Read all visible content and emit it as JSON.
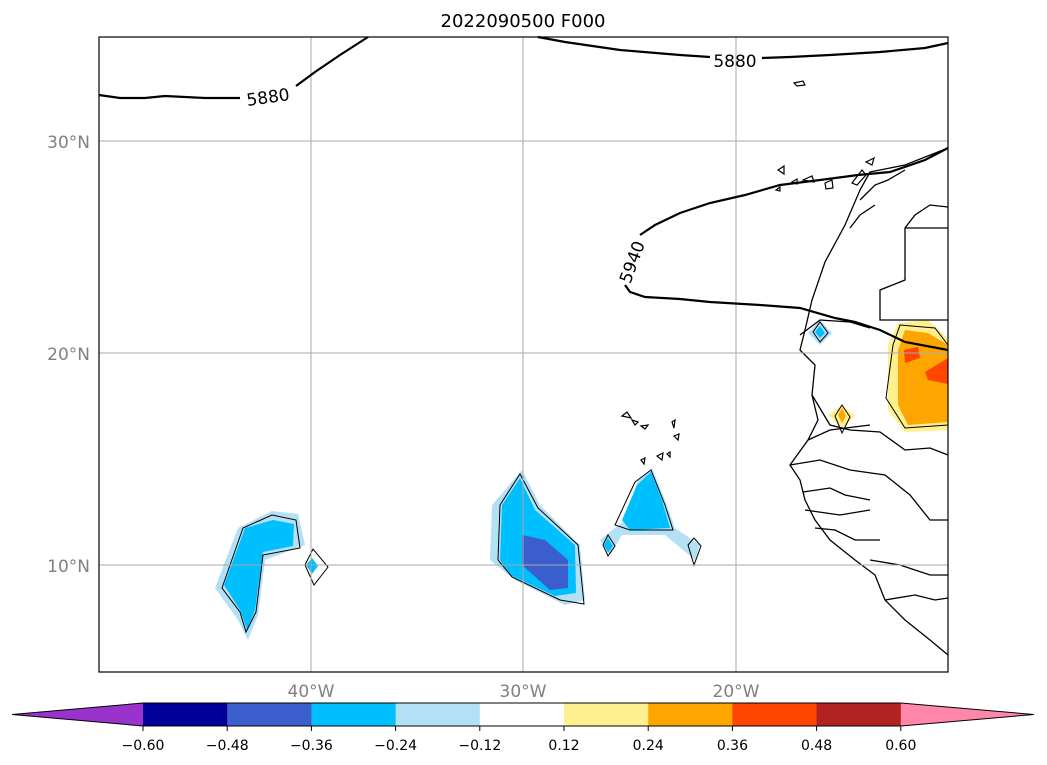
{
  "title": "2022090500 F000",
  "lat_labels": [
    "30°N",
    "20°N",
    "10°N"
  ],
  "lon_labels": [
    "40°W",
    "30°W",
    "20°W"
  ],
  "contour_labels": [
    "5880",
    "5880",
    "5940"
  ],
  "colorbar": {
    "ticks": [
      "−0.60",
      "−0.48",
      "−0.36",
      "−0.24",
      "−0.12",
      "0.12",
      "0.24",
      "0.36",
      "0.48",
      "0.60"
    ],
    "colors": [
      "#9933cc",
      "#000099",
      "#3a5fcd",
      "#00bfff",
      "#b3e0f5",
      "#ffffff",
      "#fff08f",
      "#ffa500",
      "#ff4500",
      "#b22222",
      "#ff88aa"
    ]
  },
  "colors": {
    "light_blue": "#b3e0f5",
    "blue": "#00bfff",
    "dark_blue": "#3a5fcd",
    "yellow": "#fff08f",
    "orange": "#ffa500",
    "red_orange": "#ff4500",
    "grid": "#aaaaaa"
  }
}
